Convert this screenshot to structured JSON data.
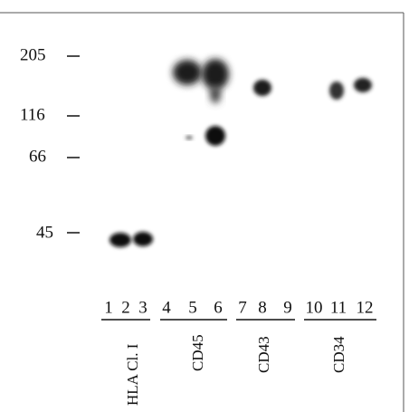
{
  "markers": [
    "205",
    "116",
    "66",
    "45"
  ],
  "lanes": [
    "1",
    "2",
    "3",
    "4",
    "5",
    "6",
    "7",
    "8",
    "9",
    "10",
    "11",
    "12"
  ],
  "groups": [
    "HLA Cl. I",
    "CD45",
    "CD43",
    "CD34"
  ]
}
